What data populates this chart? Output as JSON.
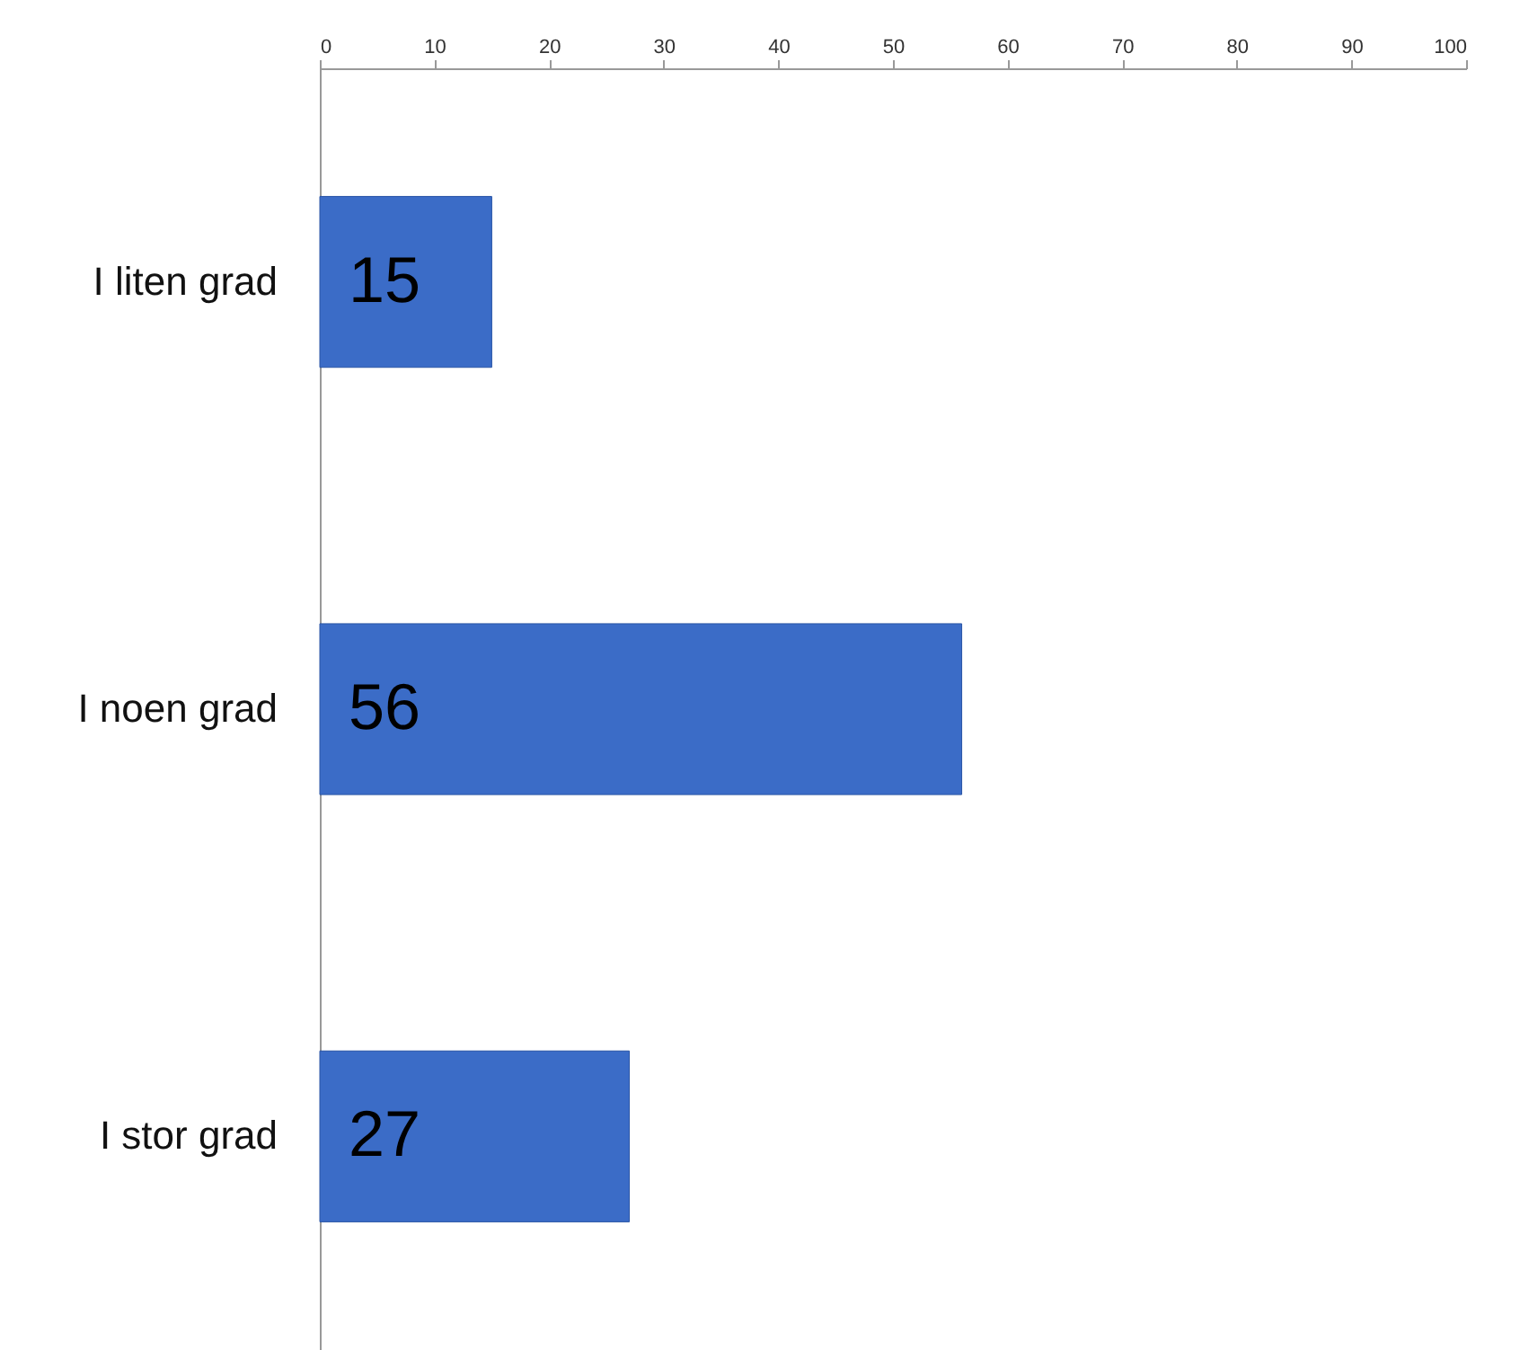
{
  "chart_data": {
    "type": "bar",
    "orientation": "horizontal",
    "categories": [
      "I liten grad",
      "I noen grad",
      "I stor grad"
    ],
    "values": [
      15,
      56,
      27
    ],
    "color": "#3b6cc7",
    "xlim": [
      0,
      100
    ],
    "xticks": [
      0,
      10,
      20,
      30,
      40,
      50,
      60,
      70,
      80,
      90,
      100
    ],
    "grid": false,
    "data_labels": true
  }
}
